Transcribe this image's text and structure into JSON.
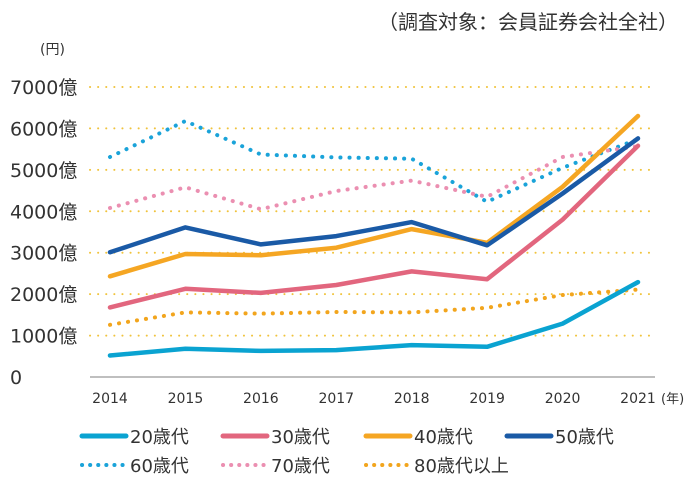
{
  "note": "（調査対象：会員証券会社全社）",
  "chart_data": {
    "type": "line",
    "title": "",
    "ylabel": "(円)",
    "xlabel": "(年)",
    "ylim": [
      0,
      7000
    ],
    "y_ticks": [
      0,
      1000,
      2000,
      3000,
      4000,
      5000,
      6000,
      7000
    ],
    "y_tick_labels": [
      "0",
      "1000億",
      "2000億",
      "3000億",
      "4000億",
      "5000億",
      "6000億",
      "7000億"
    ],
    "categories": [
      "2014",
      "2015",
      "2016",
      "2017",
      "2018",
      "2019",
      "2020",
      "2021"
    ],
    "grid": true,
    "legend_position": "bottom",
    "series": [
      {
        "name": "20歳代",
        "color": "#0aa3d1",
        "style": "solid",
        "values": [
          520,
          680,
          630,
          650,
          770,
          730,
          1290,
          2290
        ]
      },
      {
        "name": "30歳代",
        "color": "#e2667e",
        "style": "solid",
        "values": [
          1680,
          2130,
          2030,
          2220,
          2550,
          2360,
          3800,
          5580
        ]
      },
      {
        "name": "40歳代",
        "color": "#f5a623",
        "style": "solid",
        "values": [
          2430,
          2970,
          2940,
          3120,
          3570,
          3240,
          4590,
          6300
        ]
      },
      {
        "name": "50歳代",
        "color": "#1a5aa6",
        "style": "solid",
        "values": [
          3010,
          3610,
          3200,
          3400,
          3740,
          3180,
          4430,
          5760
        ]
      },
      {
        "name": "60歳代",
        "color": "#1aa3d9",
        "style": "dotted",
        "values": [
          5310,
          6180,
          5370,
          5300,
          5270,
          4230,
          5050,
          5740
        ]
      },
      {
        "name": "70歳代",
        "color": "#eb8fb1",
        "style": "dotted",
        "values": [
          4080,
          4580,
          4050,
          4490,
          4740,
          4350,
          5310,
          5570
        ]
      },
      {
        "name": "80歳代以上",
        "color": "#f2a51d",
        "style": "dotted",
        "values": [
          1260,
          1560,
          1530,
          1570,
          1560,
          1670,
          1980,
          2110
        ]
      }
    ]
  }
}
